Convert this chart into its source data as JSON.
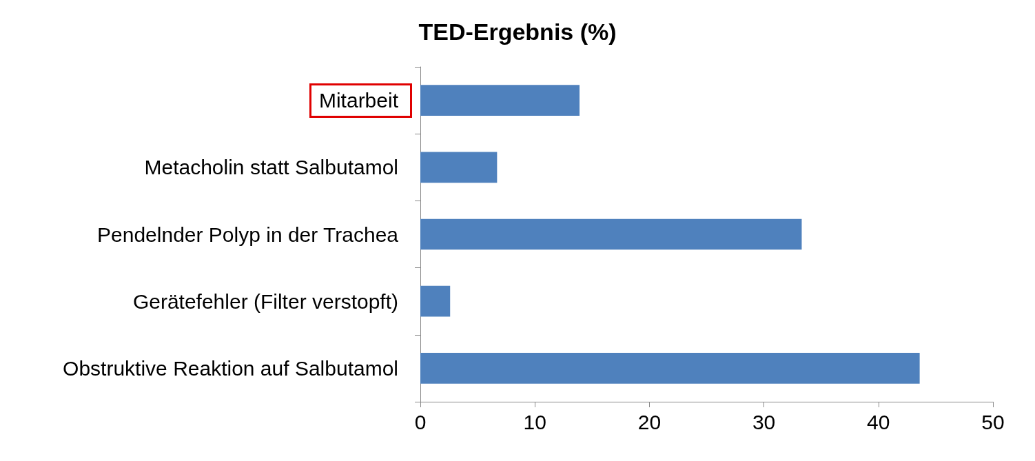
{
  "chart_data": {
    "type": "bar",
    "orientation": "horizontal",
    "title": "TED-Ergebnis (%)",
    "categories": [
      "Mitarbeit",
      "Metacholin statt Salbutamol",
      "Pendelnder Polyp in der Trachea",
      "Gerätefehler (Filter verstopft)",
      "Obstruktive Reaktion auf Salbutamol"
    ],
    "values": [
      13.9,
      6.7,
      33.3,
      2.6,
      43.6
    ],
    "color": "#4f81bd",
    "xlim": [
      0,
      50
    ],
    "xticks": [
      0,
      10,
      20,
      30,
      40,
      50
    ],
    "grid": false
  }
}
